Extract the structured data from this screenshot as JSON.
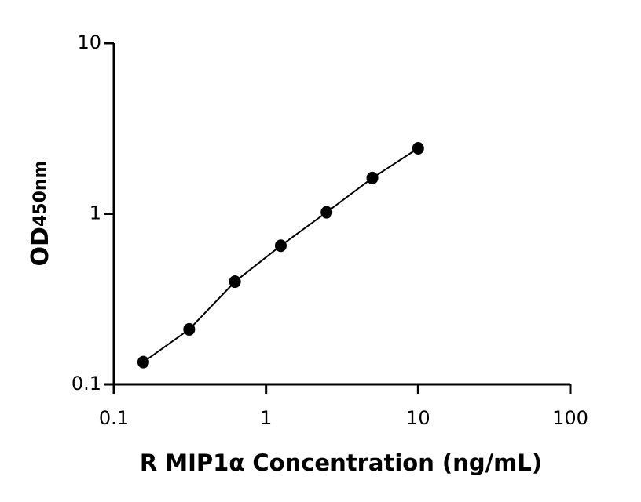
{
  "chart_data": {
    "type": "scatter",
    "xlabel": "R MIP1α Concentration (ng/mL)",
    "ylabel": "OD",
    "ylabel_sub": "450nm",
    "x": [
      0.156,
      0.3125,
      0.625,
      1.25,
      2.5,
      5,
      10
    ],
    "series": [
      {
        "color": "#000000",
        "values": [
          0.135,
          0.21,
          0.4,
          0.65,
          1.02,
          1.62,
          2.42
        ]
      }
    ],
    "xlim": [
      0.1,
      100
    ],
    "ylim": [
      0.1,
      10
    ],
    "xticks": [
      0.1,
      1,
      10,
      100
    ],
    "yticks": [
      0.1,
      1,
      10
    ],
    "xscale": "log",
    "yscale": "log",
    "grid": false,
    "fit_line": true
  }
}
